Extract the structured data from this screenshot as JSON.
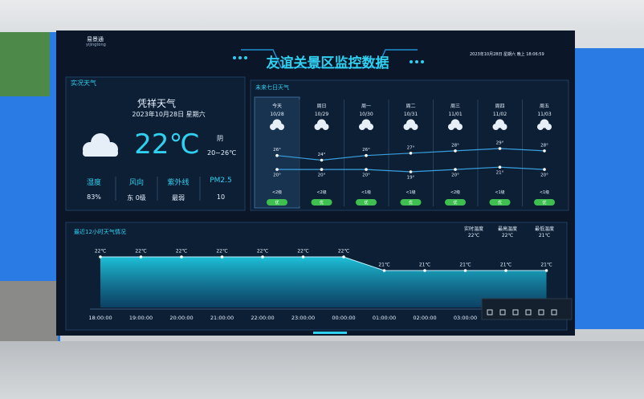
{
  "header": {
    "logo": "易景通",
    "logo_sub": "yijingtong",
    "title": "友谊关景区监控数据",
    "datetime": "2023年10月28日 星期六 晚上 18:06:59"
  },
  "current": {
    "panel_title": "实况天气",
    "location": "凭祥天气",
    "date": "2023年10月28日 星期六",
    "temperature": "22℃",
    "condition": "阴",
    "range": "20~26℃",
    "stats": [
      {
        "label": "湿度",
        "value": "83%"
      },
      {
        "label": "风向",
        "value": "东 0级"
      },
      {
        "label": "紫外线",
        "value": "最弱"
      },
      {
        "label": "PM2.5",
        "value": "10"
      }
    ]
  },
  "chart_data": [
    {
      "type": "line",
      "title": "未来七日天气",
      "categories": [
        "今天",
        "周日",
        "周一",
        "周二",
        "周三",
        "周四",
        "周五"
      ],
      "dates": [
        "10/28",
        "10/29",
        "10/30",
        "10/31",
        "11/01",
        "11/02",
        "11/03"
      ],
      "series": [
        {
          "name": "最高温度",
          "color": "#3aa0e0",
          "values": [
            26,
            24,
            26,
            27,
            28,
            29,
            28
          ],
          "value_labels": [
            "26°",
            "24°",
            "26°",
            "27°",
            "28°",
            "29°",
            "28°"
          ]
        },
        {
          "name": "最低温度",
          "color": "#3aa0e0",
          "values": [
            20,
            20,
            20,
            19,
            20,
            21,
            20
          ],
          "value_labels": [
            "20°",
            "20°",
            "20°",
            "19°",
            "20°",
            "21°",
            "20°"
          ]
        }
      ],
      "wind": [
        "<2级",
        "<2级",
        "<1级",
        "<1级",
        "<2级",
        "<1级",
        "<1级"
      ],
      "air": [
        "优",
        "优",
        "优",
        "优",
        "优",
        "优",
        "优"
      ]
    },
    {
      "type": "area",
      "title": "最近12小时天气情况",
      "categories": [
        "18:00:00",
        "19:00:00",
        "20:00:00",
        "21:00:00",
        "22:00:00",
        "23:00:00",
        "00:00:00",
        "01:00:00",
        "02:00:00",
        "03:00:00",
        null,
        null
      ],
      "values": [
        22,
        22,
        22,
        22,
        22,
        22,
        22,
        21,
        21,
        21,
        21,
        21
      ],
      "value_labels": [
        "22℃",
        "22℃",
        "22℃",
        "22℃",
        "22℃",
        "22℃",
        "22℃",
        "21℃",
        "21℃",
        "21℃",
        "21℃",
        "21℃"
      ],
      "color": "#1ec8e0",
      "stats": [
        {
          "label": "实时温度",
          "value": "22℃"
        },
        {
          "label": "最高温度",
          "value": "22℃"
        },
        {
          "label": "最低温度",
          "value": "21℃"
        }
      ]
    }
  ]
}
